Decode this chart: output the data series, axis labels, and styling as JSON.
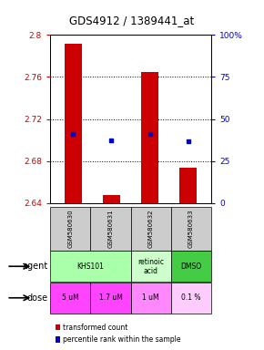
{
  "title": "GDS4912 / 1389441_at",
  "samples": [
    "GSM580630",
    "GSM580631",
    "GSM580632",
    "GSM580633"
  ],
  "bar_bottoms": [
    2.64,
    2.64,
    2.64,
    2.64
  ],
  "bar_tops": [
    2.792,
    2.648,
    2.765,
    2.674
  ],
  "percentile_values": [
    2.706,
    2.7,
    2.706,
    2.699
  ],
  "ylim_left": [
    2.64,
    2.8
  ],
  "ylim_right": [
    0,
    100
  ],
  "yticks_left": [
    2.64,
    2.68,
    2.72,
    2.76,
    2.8
  ],
  "yticks_right": [
    0,
    25,
    50,
    75,
    100
  ],
  "ytick_labels_left": [
    "2.64",
    "2.68",
    "2.72",
    "2.76",
    "2.8"
  ],
  "ytick_labels_right": [
    "0",
    "25",
    "50",
    "75",
    "100%"
  ],
  "bar_color": "#cc0000",
  "dot_color": "#0000cc",
  "doses": [
    "5 uM",
    "1.7 uM",
    "1 uM",
    "0.1 %"
  ],
  "dose_colors": [
    "#ff44ff",
    "#ff44ff",
    "#ff88ff",
    "#ffccff"
  ],
  "sample_bg_color": "#cccccc",
  "label_agent": "agent",
  "label_dose": "dose",
  "legend_bar_label": "transformed count",
  "legend_dot_label": "percentile rank within the sample",
  "agent_groups": [
    {
      "label": "KHS101",
      "start": 0,
      "end": 2,
      "color": "#aaffaa"
    },
    {
      "label": "retinoic\nacid",
      "start": 2,
      "end": 3,
      "color": "#ccffcc"
    },
    {
      "label": "DMSO",
      "start": 3,
      "end": 4,
      "color": "#44cc44"
    }
  ]
}
